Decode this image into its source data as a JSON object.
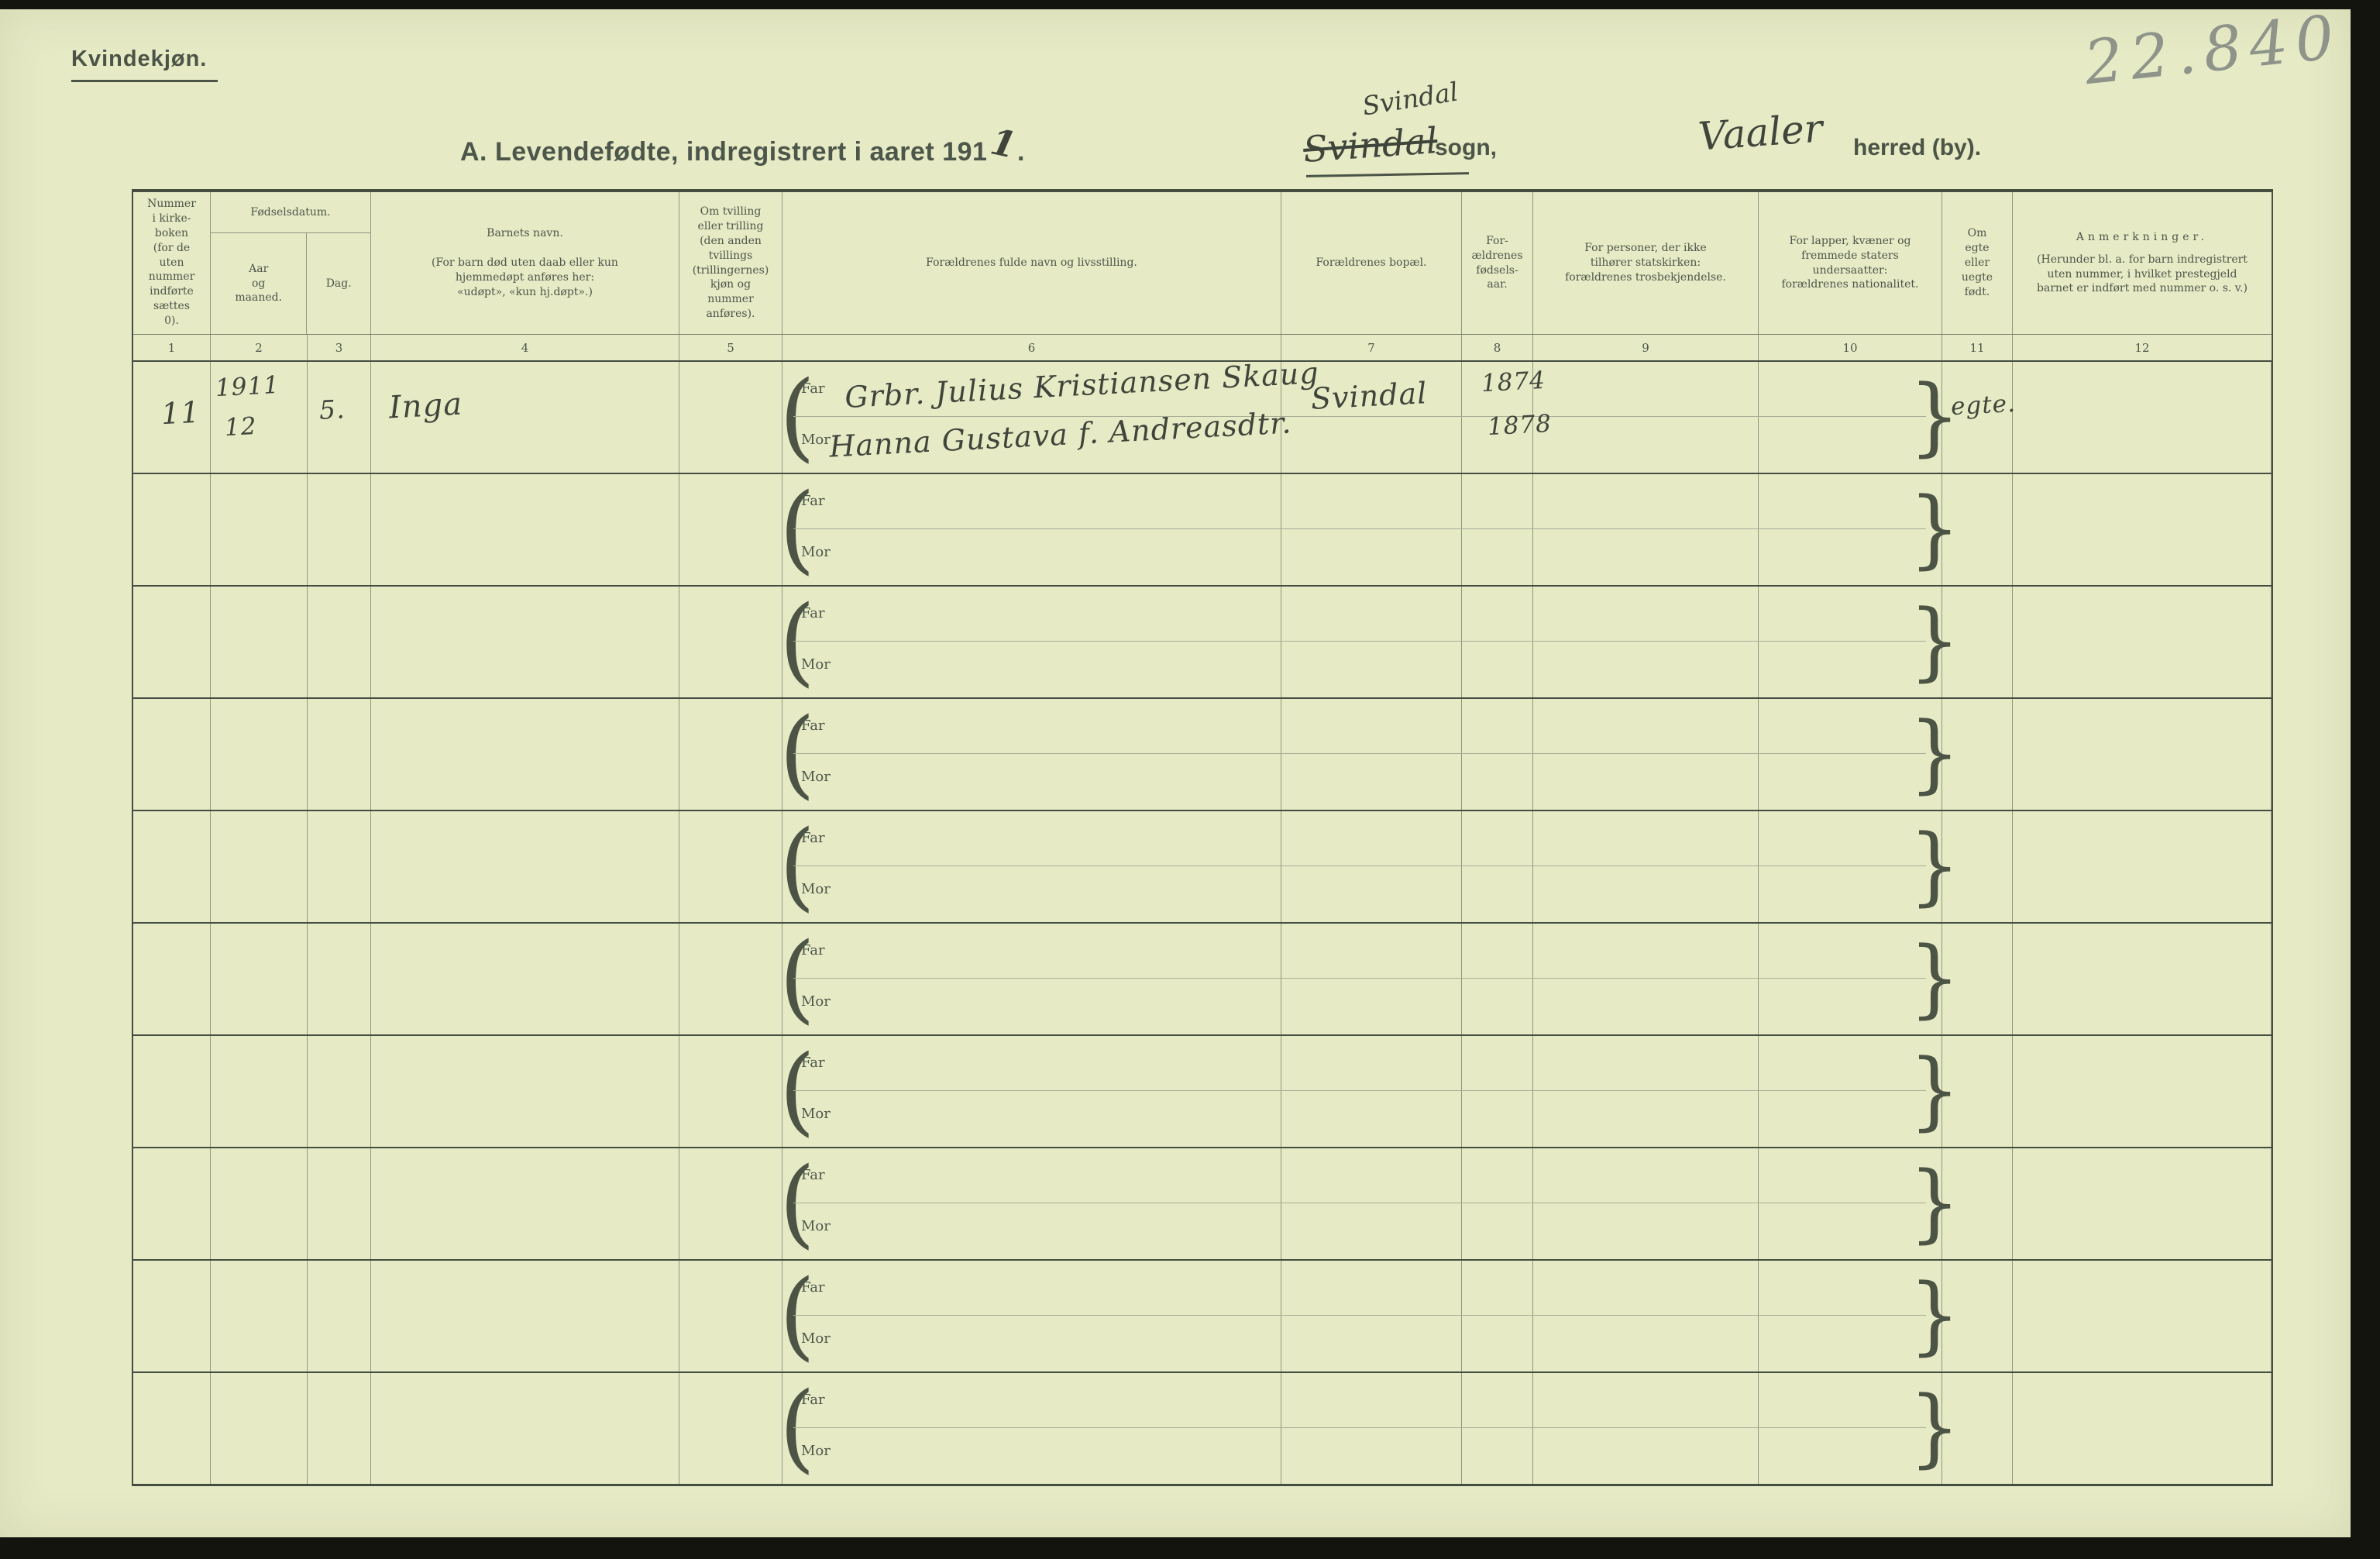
{
  "header": {
    "sex_label": "Kvindekjøn.",
    "form_title": "A.  Levendefødte, indregistrert i aaret 191",
    "year_digit_hw": "1",
    "title_period": ".",
    "parish_hw": "Svindal",
    "parish_struck_hw": "Svindal",
    "parish_label": "sogn,",
    "district_hw": "Vaaler",
    "district_label": "herred (by).",
    "pencil_number": "22.840"
  },
  "table": {
    "fodselsdatum_label": "Fødselsdatum.",
    "far_label": "Far",
    "mor_label": "Mor",
    "row_count": 10,
    "columns": [
      {
        "no": "1",
        "label": "Nummer\ni kirke-\nboken\n(for de\nuten\nnummer\nindførte\nsættes\n0)."
      },
      {
        "no": "2",
        "label": "Aar\nog\nmaaned."
      },
      {
        "no": "3",
        "label": "Dag."
      },
      {
        "no": "4",
        "label": "Barnets navn.\n\n(For barn død uten daab eller kun\nhjemmedøpt anføres her:\n«udøpt», «kun hj.døpt».)"
      },
      {
        "no": "5",
        "label": "Om tvilling\neller trilling\n(den anden\ntvillings\n(trillingernes)\nkjøn og\nnummer\nanføres)."
      },
      {
        "no": "6",
        "label": "Forældrenes fulde navn og livsstilling."
      },
      {
        "no": "7",
        "label": "Forældrenes bopæl."
      },
      {
        "no": "8",
        "label": "For-\nældrenes\nfødsels-\naar."
      },
      {
        "no": "9",
        "label": "For personer, der ikke\ntilhører statskirken:\nforældrenes trosbekjendelse."
      },
      {
        "no": "10",
        "label": "For lapper, kvæner og\nfremmede staters\nundersaatter:\nforældrenes nationalitet."
      },
      {
        "no": "11",
        "label": "Om\negte\neller\nuegte\nfødt."
      },
      {
        "no": "12",
        "label": "Anmerkninger.",
        "note": "(Herunder bl. a. for barn indregistrert\nuten nummer, i hvilket prestegjeld\nbarnet er indført med nummer o. s. v.)"
      }
    ],
    "first_row": {
      "church_book_number": "11",
      "birth_year": "1911",
      "birth_month": "12",
      "birth_day": "5.",
      "child_name": "Inga",
      "father": "Grbr. Julius Kristiansen Skaug",
      "mother": "Hanna Gustava f. Andreasdtr.",
      "parents_residence": "Svindal",
      "father_birth_year": "1874",
      "mother_birth_year": "1878",
      "legitimacy": "egte."
    }
  },
  "colors": {
    "paper": "#e6eac5",
    "print_ink": "#4d564a",
    "rule_heavy": "#454d40",
    "rule_light": "#8f977f",
    "hand_ink": "#3f453a",
    "pencil": "#8e948a"
  }
}
